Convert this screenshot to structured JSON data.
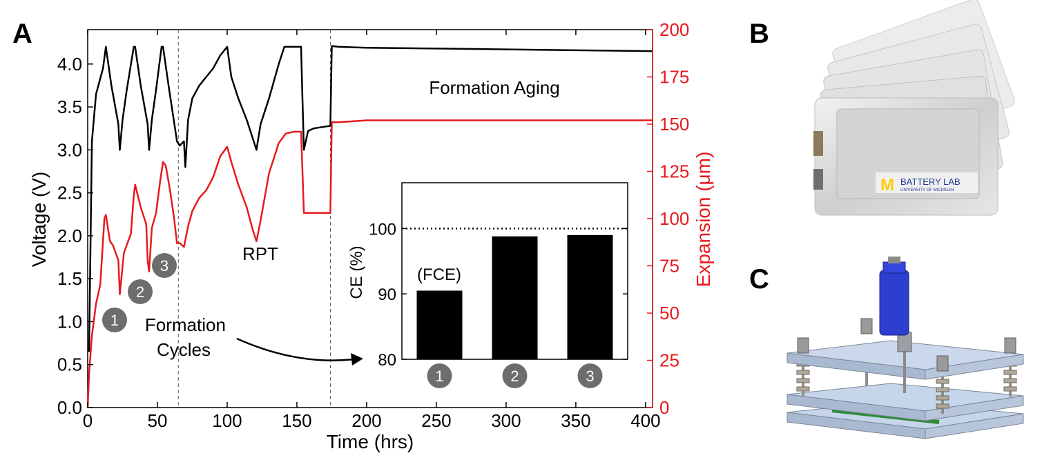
{
  "panels": {
    "a": "A",
    "b": "B",
    "c": "C"
  },
  "colors": {
    "voltage": "#000000",
    "expansion": "#e8191e",
    "badge": "#6d6d6d",
    "bar": "#000000"
  },
  "chart_data": [
    {
      "type": "line",
      "xlabel": "Time (hrs)",
      "ylabel_left": "Voltage (V)",
      "ylabel_right": "Expansion (μm)",
      "xlim": [
        0,
        405
      ],
      "ylim_left": [
        0,
        4.4
      ],
      "ylim_right": [
        0,
        200
      ],
      "x_ticks": [
        0,
        50,
        100,
        150,
        200,
        250,
        300,
        350,
        400
      ],
      "y_left_ticks": [
        "0.0",
        "0.5",
        "1.0",
        "1.5",
        "2.0",
        "2.5",
        "3.0",
        "3.5",
        "4.0"
      ],
      "y_right_ticks": [
        "0",
        "25",
        "50",
        "75",
        "100",
        "125",
        "150",
        "175",
        "200"
      ],
      "vlines": [
        65,
        174
      ],
      "annotations": [
        "RPT",
        "Formation Aging",
        "Formation Cycles"
      ],
      "cycle_badges": [
        "1",
        "2",
        "3"
      ],
      "series": [
        {
          "axis": "left",
          "x": [
            1,
            3,
            6,
            11,
            13,
            17,
            22,
            23,
            25,
            28,
            33,
            34,
            38,
            43,
            44,
            46,
            49,
            53,
            54,
            58,
            64,
            66,
            69,
            70,
            72,
            75,
            80,
            85,
            90,
            95,
            100,
            103,
            108,
            114,
            119,
            121,
            124,
            130,
            137,
            141,
            148,
            153,
            154,
            155,
            158,
            162,
            170,
            174,
            175,
            180,
            200,
            250,
            300,
            350,
            405
          ],
          "y": [
            0.65,
            3.1,
            3.65,
            3.95,
            4.2,
            3.75,
            3.3,
            3.0,
            3.35,
            3.7,
            4.2,
            4.2,
            3.75,
            3.3,
            3.0,
            3.35,
            3.7,
            4.2,
            4.2,
            3.75,
            3.1,
            3.05,
            3.1,
            2.8,
            3.35,
            3.6,
            3.75,
            3.85,
            3.95,
            4.1,
            4.2,
            3.85,
            3.6,
            3.35,
            3.1,
            3.0,
            3.3,
            3.6,
            4.0,
            4.2,
            4.2,
            4.2,
            3.6,
            3.0,
            3.22,
            3.25,
            3.27,
            3.28,
            4.21,
            4.2,
            4.19,
            4.18,
            4.17,
            4.16,
            4.15
          ]
        },
        {
          "axis": "right",
          "x": [
            0,
            1,
            3,
            6,
            9,
            12,
            13,
            16,
            18,
            22,
            23,
            26,
            28,
            31,
            33,
            34,
            38,
            42,
            43,
            44,
            46,
            49,
            52,
            54,
            56,
            59,
            62,
            64,
            66,
            69,
            72,
            75,
            80,
            85,
            90,
            95,
            100,
            103,
            108,
            114,
            118,
            121,
            124,
            130,
            137,
            142,
            148,
            153,
            154,
            155,
            158,
            165,
            174,
            175,
            180,
            200,
            250,
            300,
            350,
            405
          ],
          "y": [
            0,
            18,
            38,
            55,
            65,
            100,
            102,
            88,
            86,
            78,
            60,
            82,
            86,
            92,
            112,
            118,
            106,
            97,
            78,
            72,
            95,
            103,
            120,
            130,
            128,
            115,
            100,
            87,
            87,
            85,
            96,
            104,
            111,
            115,
            122,
            133,
            138,
            130,
            118,
            106,
            95,
            88,
            99,
            124,
            140,
            145,
            146,
            146,
            125,
            103,
            103,
            103,
            103,
            151,
            151,
            152,
            152,
            152,
            152,
            152
          ]
        }
      ]
    },
    {
      "type": "bar",
      "ylabel": "CE (%)",
      "ylim": [
        80,
        107
      ],
      "y_ticks": [
        "80",
        "90",
        "100"
      ],
      "categories": [
        "1",
        "2",
        "3"
      ],
      "values": [
        90.5,
        98.8,
        99.0
      ],
      "bar_labels": [
        "(FCE)",
        "",
        ""
      ],
      "reference_line": 100
    }
  ],
  "images": {
    "b_logo_mark": "M",
    "b_logo_line1": "BATTERY LAB",
    "b_logo_line2": "UNIVERSITY OF MICHIGAN"
  }
}
